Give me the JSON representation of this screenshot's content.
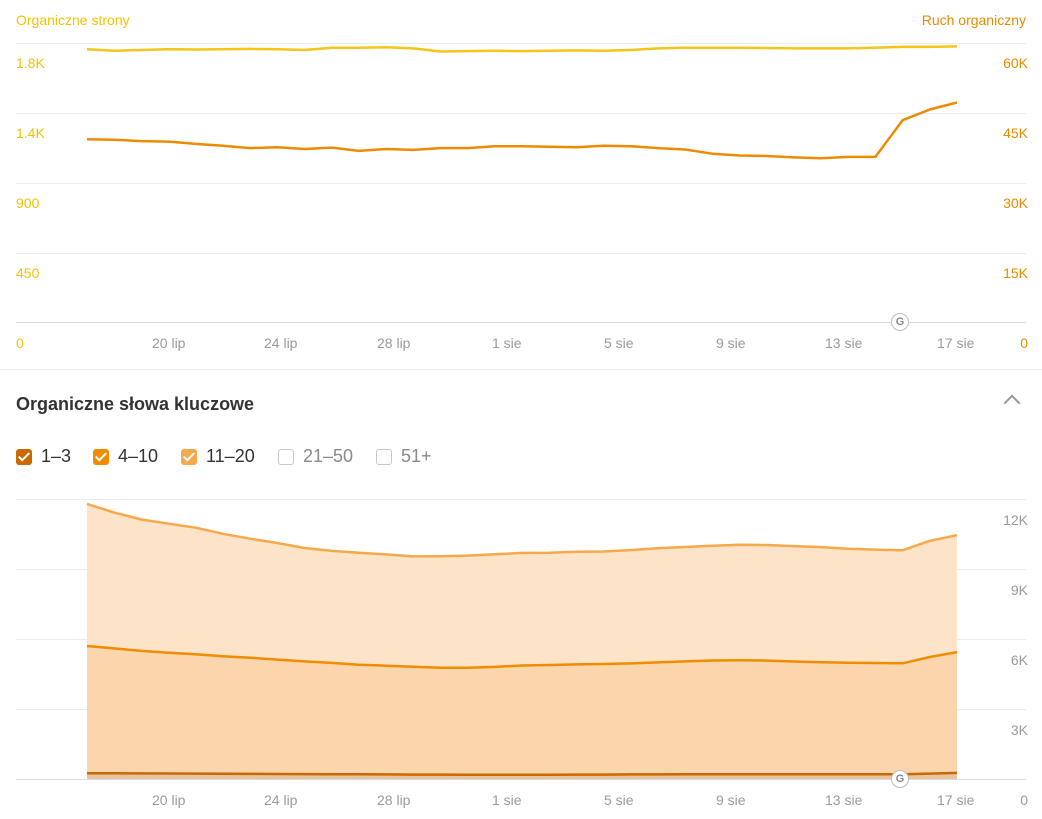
{
  "top_chart": {
    "left_title": "Organiczne strony",
    "right_title": "Ruch organiczny",
    "left_ticks": [
      "1.8K",
      "1.4K",
      "900",
      "450",
      "0"
    ],
    "right_ticks": [
      "60K",
      "45K",
      "30K",
      "15K",
      "0"
    ],
    "colors": {
      "pages": "#f5c518",
      "traffic": "#ed8b00"
    }
  },
  "keywords_section": {
    "title": "Organiczne słowa kluczowe",
    "filters": [
      {
        "label": "1–3",
        "checked": true,
        "color": "#c96a00"
      },
      {
        "label": "4–10",
        "checked": true,
        "color": "#f08c00"
      },
      {
        "label": "11–20",
        "checked": true,
        "color": "#f5a94a"
      },
      {
        "label": "21–50",
        "checked": false
      },
      {
        "label": "51+",
        "checked": false
      }
    ],
    "right_ticks": [
      "12K",
      "9K",
      "6K",
      "3K",
      "0"
    ],
    "colors": {
      "pos_1_3": "#c96a00",
      "pos_4_10": "#f08c00",
      "pos_11_20": "#f5a94a"
    }
  },
  "x_labels": [
    "20 lip",
    "24 lip",
    "28 lip",
    "1 sie",
    "5 sie",
    "9 sie",
    "13 sie",
    "17 sie"
  ],
  "google_badge": "G",
  "chart_data": [
    {
      "type": "line",
      "x": [
        "16 lip",
        "17 lip",
        "18 lip",
        "19 lip",
        "20 lip",
        "21 lip",
        "22 lip",
        "23 lip",
        "24 lip",
        "25 lip",
        "26 lip",
        "27 lip",
        "28 lip",
        "29 lip",
        "30 lip",
        "31 lip",
        "1 sie",
        "2 sie",
        "3 sie",
        "4 sie",
        "5 sie",
        "6 sie",
        "7 sie",
        "8 sie",
        "9 sie",
        "10 sie",
        "11 sie",
        "12 sie",
        "13 sie",
        "14 sie",
        "15 sie",
        "16 sie",
        "17 sie"
      ],
      "series": [
        {
          "name": "Organiczne strony",
          "axis": "left",
          "values": [
            1760,
            1750,
            1755,
            1760,
            1758,
            1760,
            1762,
            1760,
            1755,
            1770,
            1770,
            1772,
            1765,
            1745,
            1748,
            1750,
            1748,
            1750,
            1752,
            1750,
            1755,
            1765,
            1770,
            1770,
            1770,
            1768,
            1765,
            1765,
            1765,
            1770,
            1775,
            1775,
            1778
          ]
        },
        {
          "name": "Ruch organiczny",
          "axis": "right",
          "values": [
            39300,
            39200,
            38900,
            38800,
            38300,
            37900,
            37400,
            37600,
            37200,
            37500,
            36800,
            37200,
            37000,
            37400,
            37400,
            37800,
            37800,
            37700,
            37600,
            37900,
            37800,
            37400,
            37100,
            36200,
            35800,
            35700,
            35400,
            35200,
            35500,
            35500,
            43400,
            45700,
            47200
          ]
        }
      ],
      "y_left_lim": [
        0,
        1800
      ],
      "y_right_lim": [
        0,
        60000
      ],
      "grid": true
    },
    {
      "type": "area",
      "stacked": true,
      "x": [
        "16 lip",
        "17 lip",
        "18 lip",
        "19 lip",
        "20 lip",
        "21 lip",
        "22 lip",
        "23 lip",
        "24 lip",
        "25 lip",
        "26 lip",
        "27 lip",
        "28 lip",
        "29 lip",
        "30 lip",
        "31 lip",
        "1 sie",
        "2 sie",
        "3 sie",
        "4 sie",
        "5 sie",
        "6 sie",
        "7 sie",
        "8 sie",
        "9 sie",
        "10 sie",
        "11 sie",
        "12 sie",
        "13 sie",
        "14 sie",
        "15 sie",
        "16 sie",
        "17 sie"
      ],
      "series": [
        {
          "name": "1–3",
          "values": [
            250,
            245,
            240,
            235,
            230,
            225,
            220,
            215,
            210,
            205,
            200,
            195,
            190,
            188,
            185,
            185,
            185,
            185,
            190,
            190,
            195,
            195,
            200,
            200,
            205,
            205,
            205,
            205,
            205,
            200,
            200,
            230,
            260
          ]
        },
        {
          "name": "4–10",
          "values": [
            5450,
            5350,
            5250,
            5180,
            5120,
            5040,
            4980,
            4900,
            4830,
            4770,
            4700,
            4660,
            4620,
            4580,
            4580,
            4620,
            4680,
            4700,
            4720,
            4740,
            4760,
            4800,
            4840,
            4880,
            4880,
            4870,
            4830,
            4800,
            4780,
            4770,
            4760,
            5000,
            5180
          ]
        },
        {
          "name": "11–20",
          "values": [
            6090,
            5820,
            5630,
            5525,
            5420,
            5245,
            5100,
            5000,
            4860,
            4800,
            4800,
            4770,
            4730,
            4780,
            4810,
            4825,
            4825,
            4815,
            4825,
            4820,
            4855,
            4895,
            4905,
            4920,
            4950,
            4955,
            4945,
            4935,
            4885,
            4860,
            4840,
            4980,
            5010
          ]
        }
      ],
      "y_right_lim": [
        0,
        12000
      ],
      "grid": true
    }
  ]
}
